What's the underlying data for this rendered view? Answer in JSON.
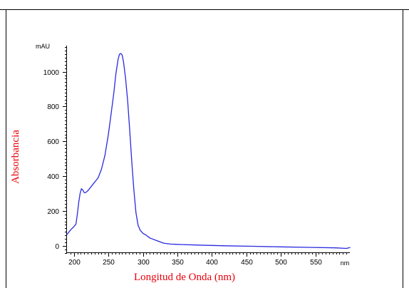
{
  "chart_data": {
    "type": "line",
    "title": "",
    "xlabel": "Longitud de Onda (nm)",
    "ylabel": "Absorbancia",
    "y_unit_label": "mAU",
    "x_unit_label": "nm",
    "xlim": [
      190,
      600
    ],
    "ylim": [
      -50,
      1150
    ],
    "x_ticks": [
      200,
      250,
      300,
      350,
      400,
      450,
      500,
      550
    ],
    "y_ticks": [
      0,
      200,
      400,
      600,
      800,
      1000
    ],
    "grid": false,
    "legend": "none",
    "colors": {
      "line": "#2a2ae0",
      "axis_title": "#e8000b",
      "axes": "#000000"
    },
    "series": [
      {
        "x": [
          190,
          195,
          200,
          203,
          205,
          207,
          209,
          211,
          213,
          215,
          217,
          220,
          225,
          230,
          235,
          240,
          245,
          250,
          254,
          258,
          261,
          264,
          266,
          268,
          270,
          272,
          275,
          278,
          281,
          284,
          287,
          290,
          293,
          296,
          300,
          305,
          310,
          320,
          330,
          340,
          350,
          380,
          420,
          460,
          500,
          540,
          580,
          595,
          600
        ],
        "y": [
          65,
          90,
          110,
          125,
          180,
          250,
          300,
          328,
          320,
          305,
          306,
          315,
          340,
          365,
          390,
          440,
          520,
          640,
          760,
          880,
          990,
          1070,
          1100,
          1105,
          1095,
          1055,
          960,
          830,
          660,
          480,
          320,
          190,
          120,
          90,
          72,
          60,
          45,
          30,
          15,
          10,
          8,
          4,
          0,
          -3,
          -6,
          -9,
          -12,
          -15,
          -10
        ]
      }
    ]
  }
}
